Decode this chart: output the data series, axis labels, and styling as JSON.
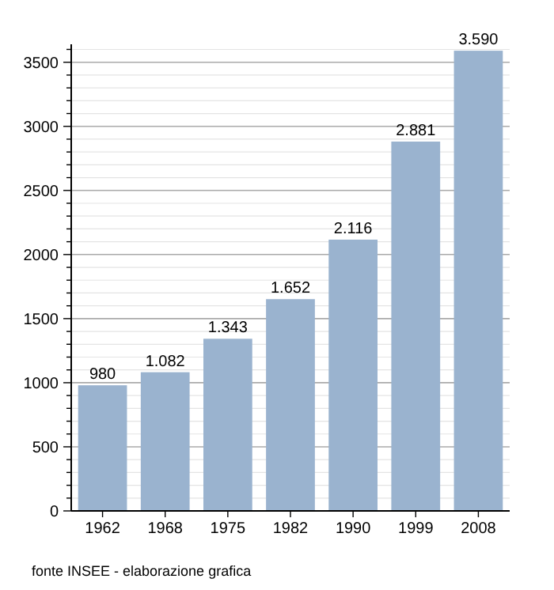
{
  "chart_data": {
    "type": "bar",
    "categories": [
      "1962",
      "1968",
      "1975",
      "1982",
      "1990",
      "1999",
      "2008"
    ],
    "values": [
      980,
      1082,
      1343,
      1652,
      2116,
      2881,
      3590
    ],
    "color": "#9ab3cf",
    "data_labels": true,
    "grid": "y",
    "ylim": [
      0,
      3640
    ],
    "yticks": [
      0,
      {
        "value": 100,
        "label": null
      },
      {
        "value": 200,
        "label": null
      },
      {
        "value": 300,
        "label": null
      },
      {
        "value": 400,
        "label": null
      },
      500,
      {
        "value": 600,
        "label": null
      },
      {
        "value": 700,
        "label": null
      },
      {
        "value": 800,
        "label": null
      },
      {
        "value": 900,
        "label": null
      },
      1000,
      {
        "value": 1100,
        "label": null
      },
      {
        "value": 1200,
        "label": null
      },
      {
        "value": 1300,
        "label": null
      },
      {
        "value": 1400,
        "label": null
      },
      1500,
      {
        "value": 1600,
        "label": null
      },
      {
        "value": 1700,
        "label": null
      },
      {
        "value": 1800,
        "label": null
      },
      {
        "value": 1900,
        "label": null
      },
      2000,
      {
        "value": 2100,
        "label": null
      },
      {
        "value": 2200,
        "label": null
      },
      {
        "value": 2300,
        "label": null
      },
      {
        "value": 2400,
        "label": null
      },
      2500,
      {
        "value": 2600,
        "label": null
      },
      {
        "value": 2700,
        "label": null
      },
      {
        "value": 2800,
        "label": null
      },
      {
        "value": 2900,
        "label": null
      },
      3000,
      {
        "value": 3100,
        "label": null
      },
      {
        "value": 3200,
        "label": null
      },
      {
        "value": 3300,
        "label": null
      },
      {
        "value": 3400,
        "label": null
      },
      3500,
      {
        "value": 3600,
        "label": null
      }
    ],
    "value_labels": [
      "980",
      "1.082",
      "1.343",
      "1.652",
      "2.116",
      "2.881",
      "3.590"
    ],
    "annotations": [
      "fonte INSEE - elaborazione grafica"
    ]
  }
}
